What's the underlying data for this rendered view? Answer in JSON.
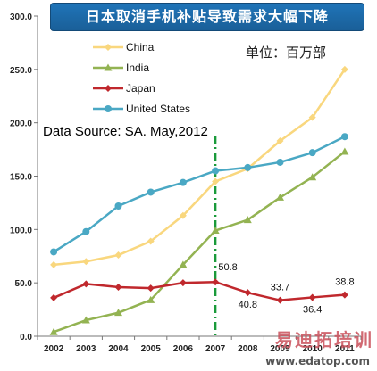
{
  "chart_data": {
    "type": "line",
    "title": "日本取消手机补贴导致需求大幅下降",
    "unit_label": "单位：百万部",
    "annotation": "Data Source: SA. May,2012",
    "x": [
      "2002",
      "2003",
      "2004",
      "2005",
      "2006",
      "2007",
      "2008",
      "2009",
      "2010",
      "2011"
    ],
    "ylim": [
      0,
      300
    ],
    "yticks": [
      "0.0",
      "50.0",
      "100.0",
      "150.0",
      "200.0",
      "250.0",
      "300.0"
    ],
    "marker_line_at": "2007",
    "series": [
      {
        "name": "China",
        "color": "#f9d77e",
        "marker": "diamond",
        "values": [
          67,
          70,
          76,
          89,
          113,
          145,
          157,
          183,
          205,
          250
        ]
      },
      {
        "name": "India",
        "color": "#93b352",
        "marker": "triangle",
        "values": [
          4,
          15,
          22,
          34,
          67,
          99,
          109,
          130,
          149,
          173
        ]
      },
      {
        "name": "Japan",
        "color": "#c0282d",
        "marker": "diamond",
        "values": [
          36,
          49,
          46,
          45,
          50,
          50.8,
          40.8,
          33.7,
          36.4,
          38.8
        ]
      },
      {
        "name": "United States",
        "color": "#4aa8c4",
        "marker": "circle",
        "values": [
          79,
          98,
          122,
          135,
          144,
          155,
          158,
          163,
          172,
          187
        ]
      }
    ],
    "data_labels": [
      "50.8",
      "40.8",
      "33.7",
      "36.4",
      "38.8"
    ],
    "legend_position": "top-left",
    "grid": false
  },
  "watermark": {
    "cn": "易迪拓培训",
    "url": "www.edatop.com"
  }
}
